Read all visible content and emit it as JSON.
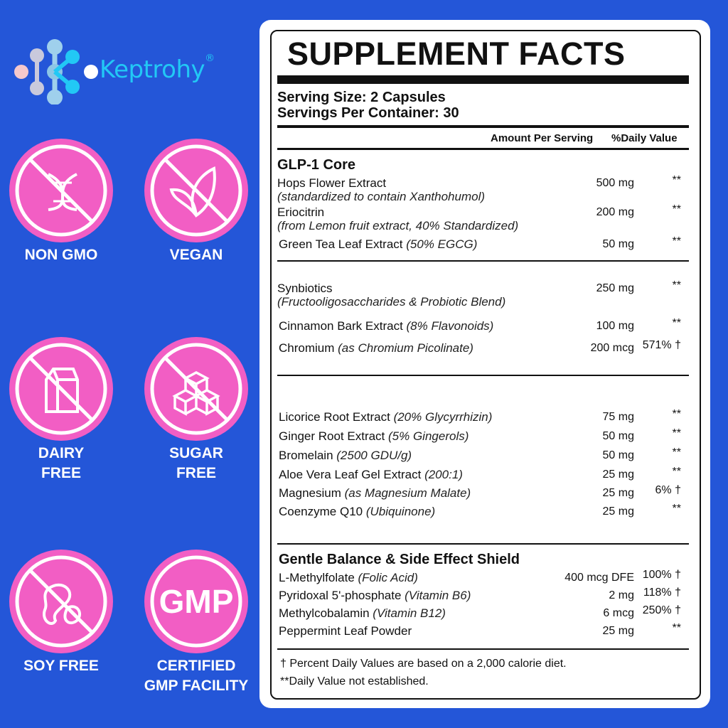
{
  "brand": {
    "name": "Keptrohy",
    "mark": "®"
  },
  "badges": [
    {
      "label1": "NON GMO",
      "label2": "",
      "icon": "dna-icon"
    },
    {
      "label1": "VEGAN",
      "label2": "",
      "icon": "leaf-icon"
    },
    {
      "label1": "DAIRY",
      "label2": "FREE",
      "icon": "milk-carton-icon"
    },
    {
      "label1": "SUGAR",
      "label2": "FREE",
      "icon": "sugar-cubes-icon"
    },
    {
      "label1": "SOY FREE",
      "label2": "",
      "icon": "soybean-icon"
    },
    {
      "label1": "CERTIFIED",
      "label2": "GMP FACILITY",
      "icon": "gmp-text",
      "text": "GMP"
    }
  ],
  "colors": {
    "background": "#2456d8",
    "badge": "#f25ec4",
    "brand": "#22c8f5"
  },
  "facts": {
    "title": "SUPPLEMENT FACTS",
    "serving_size": "Serving Size: 2 Capsules",
    "servings_per_container": "Servings Per Container: 30",
    "col_amount": "Amount Per Serving",
    "col_dv": "%Daily Value",
    "heading_glp": "GLP-1 Core",
    "heading_gentle": "Gentle Balance & Side Effect Shield",
    "rows": [
      {
        "name": "Hops Flower Extract",
        "note": "",
        "sub": "(standardized to contain Xanthohumol)",
        "amount": "500 mg",
        "dv": "**"
      },
      {
        "name": "Eriocitrin",
        "note": "",
        "sub": "(from Lemon fruit extract, 40% Standardized)",
        "amount": "200 mg",
        "dv": "**"
      },
      {
        "name": "Green Tea Leaf Extract",
        "note": "(50% EGCG)",
        "sub": "",
        "amount": "50 mg",
        "dv": "**"
      },
      {
        "name": "Synbiotics",
        "note": "",
        "sub": "(Fructooligosaccharides & Probiotic Blend)",
        "amount": "250 mg",
        "dv": "**"
      },
      {
        "name": "Cinnamon Bark Extract",
        "note": "(8% Flavonoids)",
        "sub": "",
        "amount": "100 mg",
        "dv": "**"
      },
      {
        "name": "Chromium",
        "note": "(as Chromium Picolinate)",
        "sub": "",
        "amount": "200 mcg",
        "dv": "571% †"
      },
      {
        "name": "Licorice Root Extract",
        "note": "(20% Glycyrrhizin)",
        "sub": "",
        "amount": "75 mg",
        "dv": "**"
      },
      {
        "name": "Ginger Root Extract",
        "note": " (5% Gingerols)",
        "sub": "",
        "amount": "50 mg",
        "dv": "**"
      },
      {
        "name": "Bromelain",
        "note": " (2500 GDU/g)",
        "sub": "",
        "amount": "50 mg",
        "dv": "**"
      },
      {
        "name": "Aloe Vera Leaf Gel Extract",
        "note": "(200:1)",
        "sub": "",
        "amount": "25 mg",
        "dv": "**"
      },
      {
        "name": "Magnesium",
        "note": "(as Magnesium Malate)",
        "sub": "",
        "amount": "25 mg",
        "dv": "6% †"
      },
      {
        "name": "Coenzyme Q10",
        "note": "(Ubiquinone)",
        "sub": "",
        "amount": "25 mg",
        "dv": "**"
      },
      {
        "name": "L-Methylfolate",
        "note": " (Folic Acid)",
        "sub": "",
        "amount": "400 mcg DFE",
        "dv": "100% †"
      },
      {
        "name": "Pyridoxal 5'-phosphate",
        "note": "(Vitamin B6)",
        "sub": "",
        "amount": "2 mg",
        "dv": "118% †"
      },
      {
        "name": "Methylcobalamin",
        "note": "(Vitamin B12)",
        "sub": "",
        "amount": "6 mcg",
        "dv": "250% †"
      },
      {
        "name": "Peppermint Leaf Powder",
        "note": "",
        "sub": "",
        "amount": "25 mg",
        "dv": "**"
      }
    ],
    "footnote1": "† Percent Daily Values are based on a 2,000 calorie diet.",
    "footnote2": "**Daily Value not established."
  }
}
